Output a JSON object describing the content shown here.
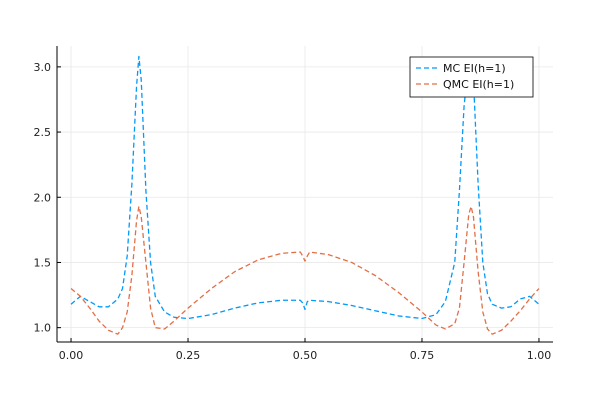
{
  "chart_data": {
    "type": "line",
    "title": "",
    "xlabel": "",
    "ylabel": "",
    "xlim": [
      -0.03,
      1.03
    ],
    "ylim": [
      0.89,
      3.16
    ],
    "xticks": [
      0.0,
      0.25,
      0.5,
      0.75,
      1.0
    ],
    "xtick_labels": [
      "0.00",
      "0.25",
      "0.50",
      "0.75",
      "1.00"
    ],
    "yticks": [
      1.0,
      1.5,
      2.0,
      2.5,
      3.0
    ],
    "ytick_labels": [
      "1.0",
      "1.5",
      "2.0",
      "2.5",
      "3.0"
    ],
    "grid": true,
    "legend_position": "top-right",
    "series": [
      {
        "name": "MC EI(h=1)",
        "color": "#009AFA",
        "style": "dashed",
        "x": [
          0.0,
          0.02,
          0.04,
          0.06,
          0.08,
          0.1,
          0.11,
          0.12,
          0.13,
          0.14,
          0.145,
          0.15,
          0.16,
          0.17,
          0.18,
          0.2,
          0.22,
          0.25,
          0.3,
          0.35,
          0.4,
          0.45,
          0.49,
          0.495,
          0.5,
          0.505,
          0.51,
          0.55,
          0.6,
          0.65,
          0.7,
          0.75,
          0.78,
          0.8,
          0.82,
          0.83,
          0.84,
          0.85,
          0.855,
          0.86,
          0.87,
          0.88,
          0.89,
          0.9,
          0.92,
          0.94,
          0.96,
          0.98,
          1.0
        ],
        "y": [
          1.18,
          1.24,
          1.2,
          1.16,
          1.16,
          1.22,
          1.3,
          1.55,
          2.1,
          2.85,
          3.08,
          2.9,
          2.05,
          1.5,
          1.24,
          1.12,
          1.08,
          1.07,
          1.1,
          1.15,
          1.19,
          1.21,
          1.21,
          1.19,
          1.14,
          1.2,
          1.21,
          1.2,
          1.17,
          1.13,
          1.09,
          1.07,
          1.1,
          1.2,
          1.5,
          2.05,
          2.7,
          3.05,
          3.08,
          2.9,
          2.1,
          1.5,
          1.26,
          1.18,
          1.15,
          1.16,
          1.22,
          1.24,
          1.18
        ]
      },
      {
        "name": "QMC EI(h=1)",
        "color": "#E26F46",
        "style": "dashed",
        "x": [
          0.0,
          0.02,
          0.04,
          0.06,
          0.08,
          0.1,
          0.11,
          0.12,
          0.13,
          0.14,
          0.145,
          0.15,
          0.16,
          0.17,
          0.18,
          0.2,
          0.22,
          0.25,
          0.3,
          0.35,
          0.4,
          0.45,
          0.49,
          0.495,
          0.5,
          0.505,
          0.51,
          0.55,
          0.6,
          0.65,
          0.7,
          0.75,
          0.78,
          0.8,
          0.82,
          0.83,
          0.84,
          0.85,
          0.855,
          0.86,
          0.87,
          0.88,
          0.89,
          0.9,
          0.92,
          0.94,
          0.96,
          0.98,
          1.0
        ],
        "y": [
          1.3,
          1.24,
          1.15,
          1.05,
          0.98,
          0.95,
          1.0,
          1.12,
          1.4,
          1.82,
          1.93,
          1.85,
          1.5,
          1.15,
          1.0,
          0.99,
          1.05,
          1.15,
          1.3,
          1.43,
          1.52,
          1.57,
          1.58,
          1.55,
          1.51,
          1.55,
          1.58,
          1.56,
          1.5,
          1.4,
          1.27,
          1.12,
          1.02,
          0.99,
          1.03,
          1.15,
          1.5,
          1.87,
          1.93,
          1.85,
          1.43,
          1.12,
          0.99,
          0.95,
          0.98,
          1.05,
          1.13,
          1.22,
          1.3
        ]
      }
    ]
  }
}
